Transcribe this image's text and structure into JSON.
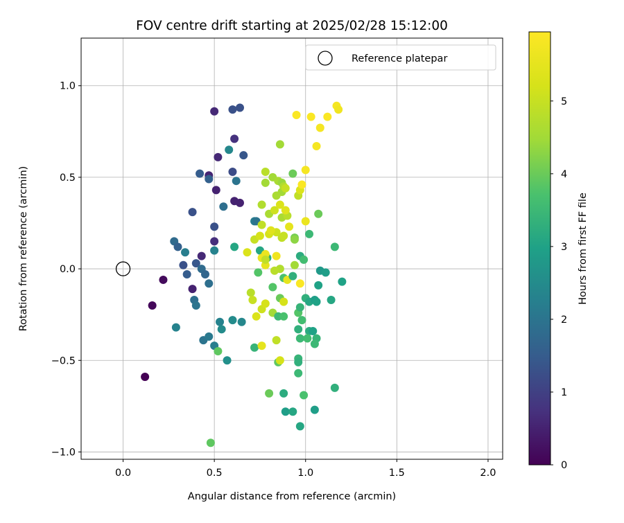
{
  "chart_data": {
    "type": "scatter",
    "title": "FOV centre drift starting at 2025/02/28 15:12:00",
    "xlabel": "Angular distance from reference (arcmin)",
    "ylabel": "Rotation from reference (arcmin)",
    "xlim": [
      -0.23,
      2.08
    ],
    "ylim": [
      -1.04,
      1.26
    ],
    "xticks": [
      0.0,
      0.5,
      1.0,
      1.5,
      2.0
    ],
    "xtick_labels": [
      "0.0",
      "0.5",
      "1.0",
      "1.5",
      "2.0"
    ],
    "yticks": [
      -1.0,
      -0.5,
      0.0,
      0.5,
      1.0
    ],
    "ytick_labels": [
      "−1.0",
      "−0.5",
      "0.0",
      "0.5",
      "1.0"
    ],
    "grid": true,
    "legend": {
      "position": "top-right",
      "label": "Reference platepar"
    },
    "reference": {
      "x": 0.0,
      "y": 0.0
    },
    "colorbar": {
      "label": "Hours from first FF file",
      "range": [
        0,
        5.95
      ],
      "ticks": [
        0,
        1,
        2,
        3,
        4,
        5
      ],
      "colormap": "viridis"
    },
    "points": [
      [
        0.12,
        -0.59,
        0.0
      ],
      [
        0.16,
        -0.2,
        0.1
      ],
      [
        0.22,
        -0.06,
        0.15
      ],
      [
        0.5,
        0.86,
        0.6
      ],
      [
        0.52,
        0.61,
        0.6
      ],
      [
        0.47,
        0.51,
        0.55
      ],
      [
        0.51,
        0.43,
        0.5
      ],
      [
        0.61,
        0.71,
        0.75
      ],
      [
        0.61,
        0.37,
        0.5
      ],
      [
        0.64,
        0.36,
        0.5
      ],
      [
        0.38,
        -0.11,
        0.5
      ],
      [
        0.43,
        0.07,
        0.6
      ],
      [
        0.5,
        0.15,
        0.7
      ],
      [
        0.64,
        0.88,
        1.3
      ],
      [
        0.6,
        0.87,
        1.3
      ],
      [
        0.66,
        0.62,
        1.4
      ],
      [
        0.6,
        0.53,
        1.2
      ],
      [
        0.42,
        0.52,
        1.5
      ],
      [
        0.38,
        0.31,
        1.3
      ],
      [
        0.5,
        0.23,
        1.3
      ],
      [
        0.47,
        0.49,
        1.6
      ],
      [
        0.33,
        0.02,
        1.3
      ],
      [
        0.4,
        0.03,
        1.4
      ],
      [
        0.35,
        -0.03,
        1.5
      ],
      [
        0.55,
        0.34,
        1.9
      ],
      [
        0.62,
        0.48,
        2.0
      ],
      [
        0.58,
        0.65,
        2.4
      ],
      [
        0.28,
        0.15,
        1.8
      ],
      [
        0.3,
        0.12,
        1.6
      ],
      [
        0.34,
        0.09,
        2.2
      ],
      [
        0.43,
        0.0,
        1.8
      ],
      [
        0.45,
        -0.03,
        1.7
      ],
      [
        0.47,
        -0.08,
        1.9
      ],
      [
        0.39,
        -0.17,
        1.9
      ],
      [
        0.4,
        -0.2,
        2.0
      ],
      [
        0.5,
        0.1,
        2.3
      ],
      [
        0.61,
        0.12,
        3.1
      ],
      [
        0.29,
        -0.32,
        2.3
      ],
      [
        0.44,
        -0.39,
        2.0
      ],
      [
        0.47,
        -0.37,
        2.1
      ],
      [
        0.5,
        -0.42,
        2.2
      ],
      [
        0.53,
        -0.29,
        2.3
      ],
      [
        0.54,
        -0.33,
        2.5
      ],
      [
        0.6,
        -0.28,
        2.5
      ],
      [
        0.65,
        -0.29,
        2.4
      ],
      [
        0.57,
        -0.5,
        2.6
      ],
      [
        0.72,
        0.26,
        2.2
      ],
      [
        0.73,
        0.26,
        2.0
      ],
      [
        0.75,
        0.1,
        3.1
      ],
      [
        0.79,
        0.06,
        3.2
      ],
      [
        0.72,
        -0.43,
        3.4
      ],
      [
        0.52,
        -0.45,
        3.9
      ],
      [
        0.48,
        -0.95,
        3.9
      ],
      [
        0.76,
        0.35,
        4.7
      ],
      [
        0.78,
        0.47,
        4.5
      ],
      [
        0.78,
        0.53,
        4.8
      ],
      [
        0.82,
        0.5,
        4.5
      ],
      [
        0.85,
        0.48,
        4.6
      ],
      [
        0.87,
        0.47,
        4.4
      ],
      [
        0.87,
        0.42,
        4.5
      ],
      [
        0.84,
        0.4,
        4.6
      ],
      [
        0.88,
        0.45,
        4.7
      ],
      [
        0.89,
        0.44,
        5.0
      ],
      [
        0.87,
        0.28,
        4.6
      ],
      [
        0.9,
        0.29,
        4.8
      ],
      [
        0.93,
        0.52,
        4.0
      ],
      [
        0.96,
        0.4,
        4.9
      ],
      [
        0.97,
        0.43,
        5.3
      ],
      [
        0.98,
        0.46,
        5.9
      ],
      [
        1.0,
        0.54,
        5.8
      ],
      [
        0.95,
        0.84,
        5.9
      ],
      [
        1.03,
        0.83,
        5.9
      ],
      [
        1.08,
        0.77,
        5.8
      ],
      [
        1.12,
        0.83,
        5.9
      ],
      [
        1.17,
        0.89,
        5.8
      ],
      [
        1.18,
        0.87,
        5.7
      ],
      [
        1.06,
        0.67,
        5.8
      ],
      [
        0.86,
        0.68,
        4.5
      ],
      [
        0.8,
        0.3,
        4.6
      ],
      [
        0.83,
        0.32,
        5.1
      ],
      [
        0.86,
        0.35,
        5.3
      ],
      [
        0.89,
        0.32,
        5.4
      ],
      [
        0.91,
        0.23,
        5.5
      ],
      [
        0.84,
        0.2,
        5.1
      ],
      [
        0.8,
        0.19,
        5.2
      ],
      [
        0.76,
        0.24,
        4.9
      ],
      [
        0.72,
        0.16,
        5.0
      ],
      [
        0.75,
        0.18,
        5.2
      ],
      [
        0.81,
        0.21,
        5.4
      ],
      [
        0.87,
        0.17,
        4.9
      ],
      [
        0.88,
        0.18,
        5.0
      ],
      [
        0.94,
        0.17,
        4.1
      ],
      [
        0.94,
        0.16,
        4.3
      ],
      [
        1.0,
        0.26,
        5.6
      ],
      [
        1.02,
        0.19,
        3.5
      ],
      [
        1.07,
        0.3,
        4.0
      ],
      [
        0.68,
        0.09,
        5.3
      ],
      [
        0.76,
        0.06,
        5.6
      ],
      [
        0.78,
        0.08,
        5.6
      ],
      [
        0.78,
        0.02,
        5.5
      ],
      [
        0.84,
        0.07,
        5.7
      ],
      [
        0.86,
        0.0,
        4.7
      ],
      [
        0.83,
        -0.01,
        4.8
      ],
      [
        0.78,
        0.05,
        4.9
      ],
      [
        0.74,
        -0.02,
        3.8
      ],
      [
        0.88,
        -0.05,
        3.7
      ],
      [
        0.9,
        -0.06,
        5.5
      ],
      [
        0.93,
        -0.04,
        3.3
      ],
      [
        0.94,
        0.02,
        4.5
      ],
      [
        0.97,
        0.07,
        3.2
      ],
      [
        0.99,
        0.05,
        3.6
      ],
      [
        1.08,
        -0.01,
        2.8
      ],
      [
        1.11,
        -0.02,
        2.9
      ],
      [
        1.07,
        -0.09,
        3.0
      ],
      [
        1.16,
        0.12,
        3.5
      ],
      [
        1.2,
        -0.07,
        3.0
      ],
      [
        0.97,
        -0.08,
        5.9
      ],
      [
        0.7,
        -0.13,
        4.8
      ],
      [
        0.71,
        -0.17,
        5.0
      ],
      [
        0.76,
        -0.22,
        5.1
      ],
      [
        0.78,
        -0.19,
        5.2
      ],
      [
        0.73,
        -0.26,
        5.3
      ],
      [
        0.82,
        -0.1,
        3.8
      ],
      [
        0.86,
        -0.16,
        4.0
      ],
      [
        0.88,
        -0.18,
        5.2
      ],
      [
        0.82,
        -0.24,
        4.5
      ],
      [
        0.85,
        -0.26,
        3.5
      ],
      [
        0.88,
        -0.26,
        3.7
      ],
      [
        0.96,
        -0.24,
        3.8
      ],
      [
        0.98,
        -0.28,
        3.6
      ],
      [
        0.97,
        -0.21,
        3.4
      ],
      [
        1.0,
        -0.16,
        3.3
      ],
      [
        1.02,
        -0.18,
        3.1
      ],
      [
        1.05,
        -0.17,
        2.9
      ],
      [
        1.06,
        -0.18,
        3.0
      ],
      [
        1.14,
        -0.17,
        3.1
      ],
      [
        0.96,
        -0.33,
        3.3
      ],
      [
        1.02,
        -0.34,
        3.2
      ],
      [
        1.04,
        -0.34,
        3.0
      ],
      [
        0.97,
        -0.38,
        3.5
      ],
      [
        1.01,
        -0.38,
        3.6
      ],
      [
        1.06,
        -0.38,
        3.4
      ],
      [
        1.05,
        -0.41,
        3.5
      ],
      [
        0.84,
        -0.39,
        4.9
      ],
      [
        0.76,
        -0.42,
        5.5
      ],
      [
        0.85,
        -0.51,
        3.9
      ],
      [
        0.86,
        -0.5,
        5.2
      ],
      [
        0.96,
        -0.49,
        3.4
      ],
      [
        0.96,
        -0.51,
        3.3
      ],
      [
        0.96,
        -0.57,
        3.5
      ],
      [
        0.8,
        -0.68,
        4.0
      ],
      [
        0.88,
        -0.68,
        3.2
      ],
      [
        0.99,
        -0.69,
        3.7
      ],
      [
        0.89,
        -0.78,
        2.9
      ],
      [
        0.93,
        -0.78,
        3.1
      ],
      [
        0.97,
        -0.86,
        3.1
      ],
      [
        1.05,
        -0.77,
        2.9
      ],
      [
        1.16,
        -0.65,
        3.3
      ]
    ]
  }
}
